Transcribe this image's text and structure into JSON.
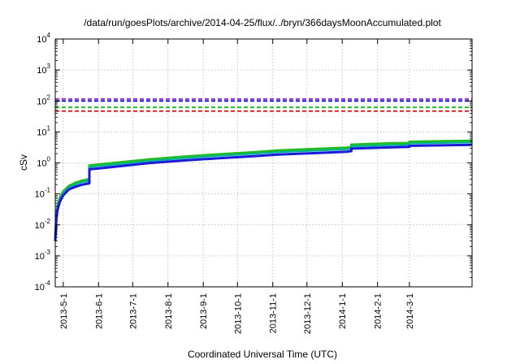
{
  "chart_data": {
    "type": "line",
    "title": "/data/run/goesPlots/archive/2014-04-25/flux/../bryn/366daysMoonAccumulated.plot",
    "xlabel": "Coordinated Universal Time (UTC)",
    "ylabel": "cSv",
    "yscale": "log",
    "ylim": [
      0.0001,
      10000
    ],
    "xlim": [
      "2013-04-24",
      "2014-04-25"
    ],
    "grid": true,
    "legend": "none",
    "x_tick_labels": [
      "2013-5-1",
      "2013-6-1",
      "2013-7-1",
      "2013-8-1",
      "2013-9-1",
      "2013-10-1",
      "2013-11-1",
      "2013-12-1",
      "2014-1-1",
      "2014-2-1",
      "2014-3-1"
    ],
    "y_tick_labels": [
      {
        "base": "10",
        "exp": "-4"
      },
      {
        "base": "10",
        "exp": "-3"
      },
      {
        "base": "10",
        "exp": "-2"
      },
      {
        "base": "10",
        "exp": "-1"
      },
      {
        "base": "10",
        "exp": "0"
      },
      {
        "base": "10",
        "exp": "1"
      },
      {
        "base": "10",
        "exp": "2"
      },
      {
        "base": "10",
        "exp": "3"
      },
      {
        "base": "10",
        "exp": "4"
      }
    ],
    "limits": [
      {
        "value": 115,
        "color": "#9b30d6"
      },
      {
        "value": 100,
        "color": "#1a1ad8"
      },
      {
        "value": 62,
        "color": "#22bb22"
      },
      {
        "value": 47,
        "color": "#e02020"
      }
    ],
    "series": [
      {
        "color": "#22bb22",
        "width": 3,
        "x": [
          "2013-04-24",
          "2013-04-25",
          "2013-04-26",
          "2013-04-28",
          "2013-05-01",
          "2013-05-06",
          "2013-05-12",
          "2013-05-18",
          "2013-05-24",
          "2013-05-24",
          "2013-06-15",
          "2013-07-15",
          "2013-08-15",
          "2013-09-15",
          "2013-10-15",
          "2013-11-05",
          "2013-12-05",
          "2014-01-05",
          "2014-01-09",
          "2014-01-09",
          "2014-02-15",
          "2014-03-01",
          "2014-03-01",
          "2014-04-25"
        ],
        "values": [
          0.004,
          0.02,
          0.04,
          0.075,
          0.12,
          0.18,
          0.23,
          0.27,
          0.3,
          0.83,
          1.0,
          1.3,
          1.6,
          1.9,
          2.2,
          2.5,
          2.8,
          3.1,
          3.2,
          3.9,
          4.3,
          4.4,
          4.8,
          5.2
        ]
      },
      {
        "color": "#00b0a0",
        "width": 2,
        "x": [
          "2013-04-24",
          "2013-04-25",
          "2013-04-26",
          "2013-04-28",
          "2013-05-01",
          "2013-05-06",
          "2013-05-12",
          "2013-05-18",
          "2013-05-24",
          "2013-05-24",
          "2013-06-15",
          "2013-07-15",
          "2013-08-15",
          "2013-09-15",
          "2013-10-15",
          "2013-11-05",
          "2013-12-05",
          "2014-01-05",
          "2014-01-09",
          "2014-01-09",
          "2014-02-15",
          "2014-03-01",
          "2014-03-01",
          "2014-04-25"
        ],
        "values": [
          0.0035,
          0.018,
          0.035,
          0.065,
          0.105,
          0.16,
          0.2,
          0.24,
          0.26,
          0.73,
          0.88,
          1.15,
          1.42,
          1.68,
          1.95,
          2.2,
          2.45,
          2.72,
          2.82,
          3.4,
          3.75,
          3.85,
          4.2,
          4.55
        ]
      },
      {
        "color": "#1a1ad8",
        "width": 3,
        "x": [
          "2013-04-24",
          "2013-04-25",
          "2013-04-26",
          "2013-04-28",
          "2013-05-01",
          "2013-05-06",
          "2013-05-12",
          "2013-05-18",
          "2013-05-24",
          "2013-05-24",
          "2013-06-15",
          "2013-07-15",
          "2013-08-15",
          "2013-09-15",
          "2013-10-15",
          "2013-11-05",
          "2013-12-05",
          "2014-01-05",
          "2014-01-09",
          "2014-01-09",
          "2014-02-15",
          "2014-03-01",
          "2014-03-01",
          "2014-04-25"
        ],
        "values": [
          0.003,
          0.015,
          0.03,
          0.055,
          0.09,
          0.14,
          0.17,
          0.2,
          0.22,
          0.62,
          0.75,
          0.98,
          1.2,
          1.42,
          1.65,
          1.85,
          2.05,
          2.3,
          2.4,
          2.9,
          3.2,
          3.3,
          3.55,
          3.85
        ]
      }
    ]
  }
}
